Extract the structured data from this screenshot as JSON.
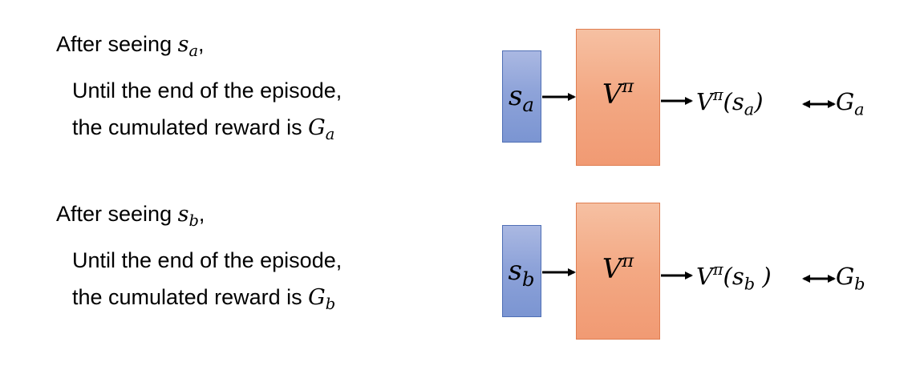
{
  "colors": {
    "state_box": "#8ea3d9",
    "value_box": "#f3a883",
    "arrow": "#000000"
  },
  "rows": [
    {
      "heading_prefix": "After seeing ",
      "state_symbol": "s",
      "state_sub": "a",
      "heading_suffix": ",",
      "line1": "Until the end of the episode,",
      "line2_prefix": "the cumulated reward is ",
      "reward_symbol": "G",
      "reward_sub": "a",
      "box_state_symbol": "s",
      "box_state_sub": "a",
      "value_fn": "V",
      "value_sup": "π",
      "output_fn": "V",
      "output_sup": "π",
      "output_open": "(",
      "output_arg": "s",
      "output_arg_sub": "a",
      "output_close": ")",
      "target_symbol": "G",
      "target_sub": "a"
    },
    {
      "heading_prefix": "After seeing ",
      "state_symbol": "s",
      "state_sub": "b",
      "heading_suffix": ",",
      "line1": "Until the end of the episode,",
      "line2_prefix": "the cumulated reward is ",
      "reward_symbol": "G",
      "reward_sub": "b",
      "box_state_symbol": "s",
      "box_state_sub": "b",
      "value_fn": "V",
      "value_sup": "π",
      "output_fn": "V",
      "output_sup": "π",
      "output_open": "(",
      "output_arg": "s",
      "output_arg_sub": "b",
      "output_close": " )",
      "target_symbol": "G",
      "target_sub": "b"
    }
  ]
}
